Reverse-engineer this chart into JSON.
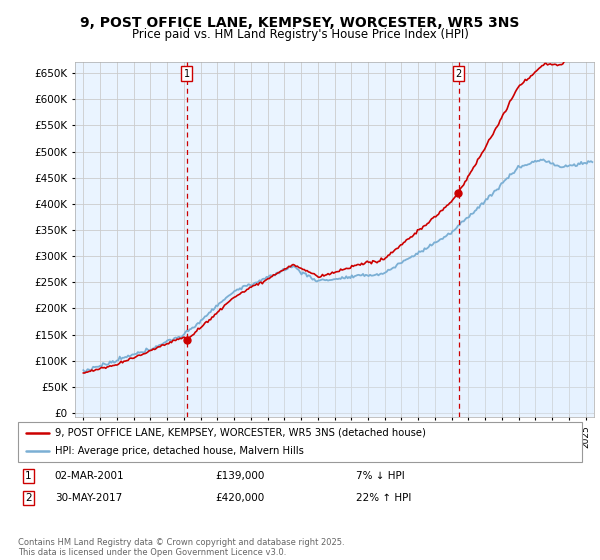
{
  "title": "9, POST OFFICE LANE, KEMPSEY, WORCESTER, WR5 3NS",
  "subtitle": "Price paid vs. HM Land Registry's House Price Index (HPI)",
  "title_fontsize": 10,
  "subtitle_fontsize": 8.5,
  "yticks": [
    0,
    50000,
    100000,
    150000,
    200000,
    250000,
    300000,
    350000,
    400000,
    450000,
    500000,
    550000,
    600000,
    650000
  ],
  "ylim": [
    -8000,
    672000
  ],
  "xlim": [
    1994.5,
    2025.5
  ],
  "hpi_color": "#7bafd4",
  "hpi_fill_color": "#ddeeff",
  "price_color": "#cc0000",
  "vline_color": "#cc0000",
  "vline_style": "--",
  "sale1_x": 2001.17,
  "sale1_y": 139000,
  "sale2_x": 2017.41,
  "sale2_y": 420000,
  "ann1_label": "1",
  "ann2_label": "2",
  "legend_line1": "9, POST OFFICE LANE, KEMPSEY, WORCESTER, WR5 3NS (detached house)",
  "legend_line2": "HPI: Average price, detached house, Malvern Hills",
  "ann1_date": "02-MAR-2001",
  "ann1_price": "£139,000",
  "ann1_hpi": "7% ↓ HPI",
  "ann2_date": "30-MAY-2017",
  "ann2_price": "£420,000",
  "ann2_hpi": "22% ↑ HPI",
  "copyright": "Contains HM Land Registry data © Crown copyright and database right 2025.\nThis data is licensed under the Open Government Licence v3.0.",
  "background_color": "#ffffff",
  "grid_color": "#cccccc",
  "chart_bg": "#eaf4ff"
}
